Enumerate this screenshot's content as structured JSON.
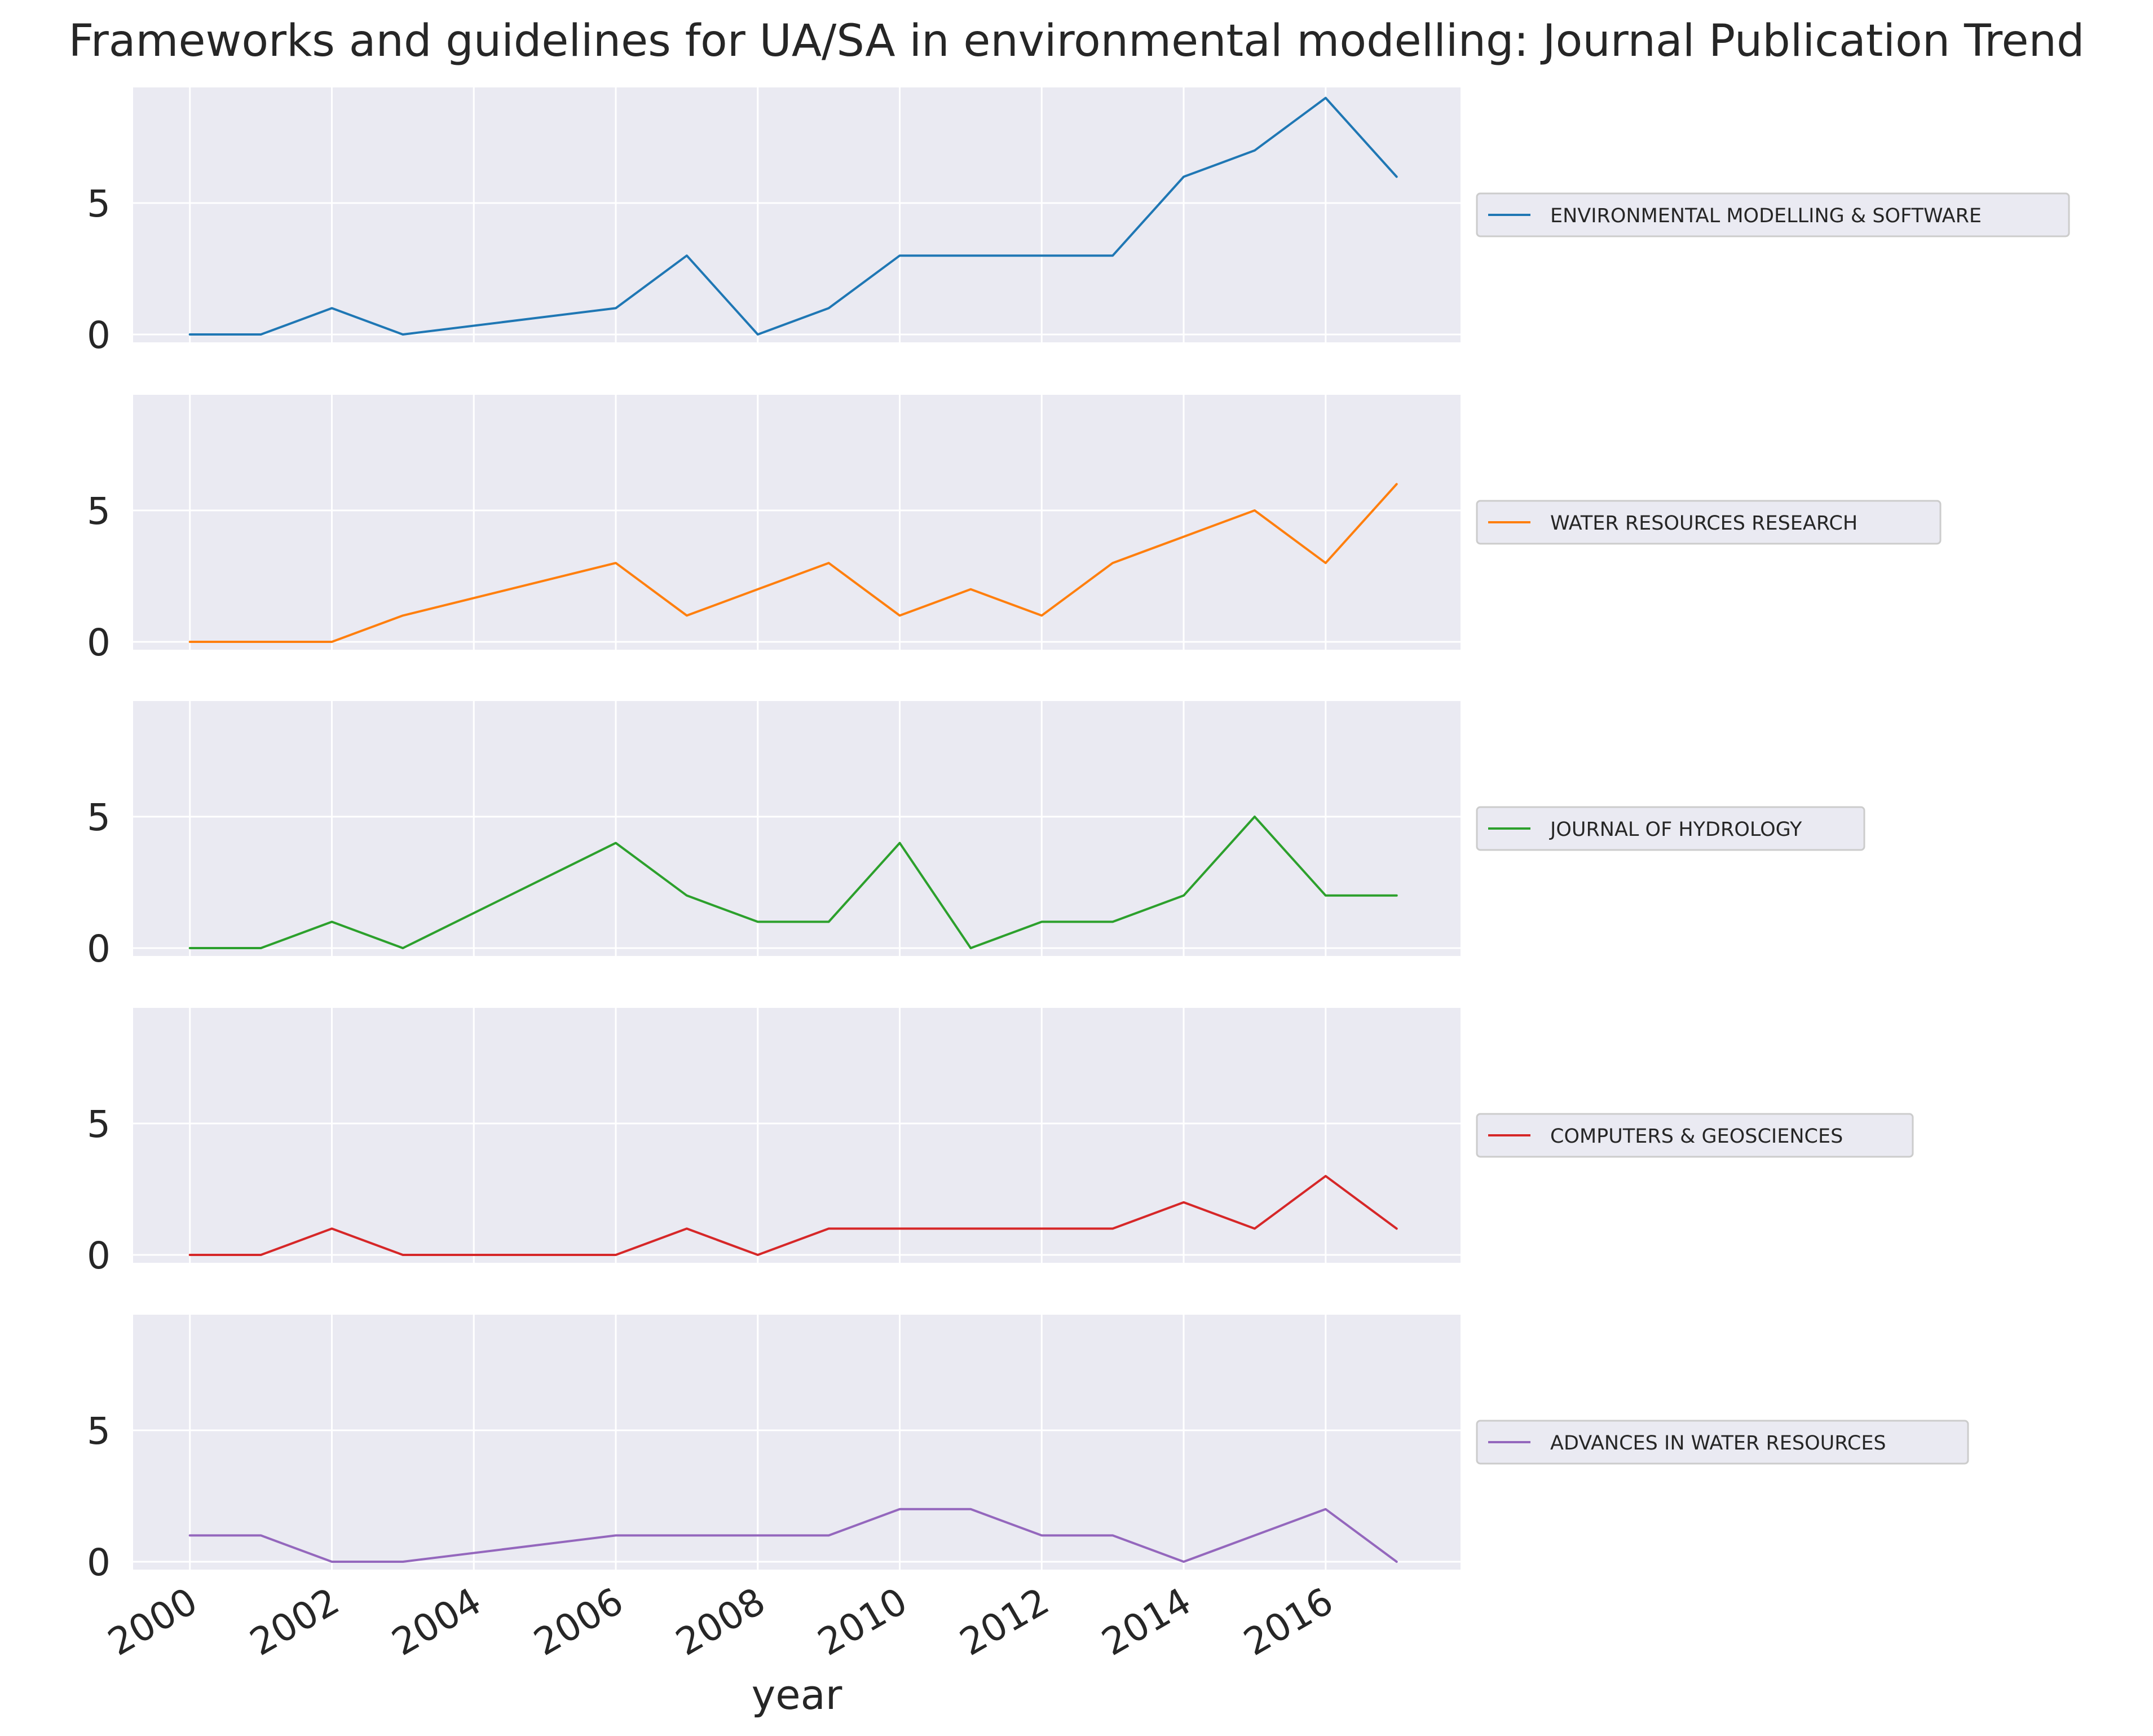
{
  "title": "Frameworks and guidelines for UA/SA in environmental modelling: Journal Publication Trend",
  "chart_data": {
    "type": "line",
    "layout": "stacked-subplots",
    "title": "Frameworks and guidelines for UA/SA in environmental modelling: Journal Publication Trend",
    "xlabel": "year",
    "ylabel": "",
    "x": [
      2000,
      2001,
      2002,
      2003,
      2006,
      2007,
      2008,
      2009,
      2010,
      2011,
      2012,
      2013,
      2014,
      2015,
      2016,
      2017
    ],
    "x_ticks": [
      2000,
      2002,
      2004,
      2006,
      2008,
      2010,
      2012,
      2014,
      2016
    ],
    "x_tick_labels": [
      "2000",
      "2002",
      "2004",
      "2006",
      "2008",
      "2010",
      "2012",
      "2014",
      "2016"
    ],
    "y_ticks": [
      0,
      5
    ],
    "y_tick_labels": [
      "0",
      "5"
    ],
    "ylim": [
      -0.3,
      9.4
    ],
    "xlim": [
      1999.2,
      2017.9
    ],
    "grid": true,
    "legend_position": "right",
    "series": [
      {
        "name": "ENVIRONMENTAL MODELLING & SOFTWARE",
        "color": "#1f77b4",
        "values": [
          0,
          0,
          1,
          0,
          1,
          3,
          0,
          1,
          3,
          3,
          3,
          3,
          6,
          7,
          9,
          6
        ]
      },
      {
        "name": "WATER RESOURCES RESEARCH",
        "color": "#ff7f0e",
        "values": [
          0,
          0,
          0,
          1,
          3,
          1,
          2,
          3,
          1,
          2,
          1,
          3,
          4,
          5,
          3,
          6
        ]
      },
      {
        "name": "JOURNAL OF HYDROLOGY",
        "color": "#2ca02c",
        "values": [
          0,
          0,
          1,
          0,
          4,
          2,
          1,
          1,
          4,
          0,
          1,
          1,
          2,
          5,
          2,
          2
        ]
      },
      {
        "name": "COMPUTERS & GEOSCIENCES",
        "color": "#d62728",
        "values": [
          0,
          0,
          1,
          0,
          0,
          1,
          0,
          1,
          1,
          1,
          1,
          1,
          2,
          1,
          3,
          1
        ]
      },
      {
        "name": "ADVANCES IN WATER RESOURCES",
        "color": "#9467bd",
        "values": [
          1,
          1,
          0,
          0,
          1,
          1,
          1,
          1,
          2,
          2,
          1,
          1,
          0,
          1,
          2,
          0
        ]
      }
    ]
  }
}
